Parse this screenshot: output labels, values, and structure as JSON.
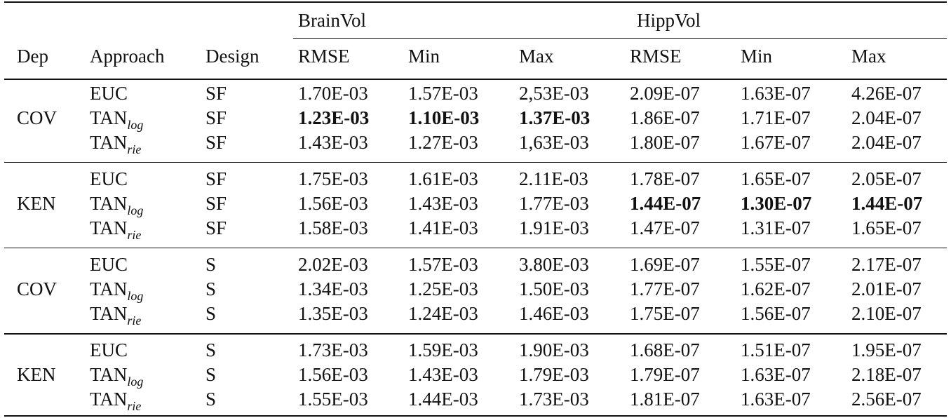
{
  "header": {
    "group_brainvol": "BrainVol",
    "group_hippvol": "HippVol",
    "columns": [
      "Dep",
      "Approach",
      "Design",
      "RMSE",
      "Min",
      "Max",
      "RMSE",
      "Min",
      "Max"
    ]
  },
  "blocks": [
    {
      "dep": "COV",
      "rows": [
        {
          "approach": "EUC",
          "sub": "",
          "design": "SF",
          "values": [
            "1.70E-03",
            "1.57E-03",
            "2,53E-03",
            "2.09E-07",
            "1.63E-07",
            "4.26E-07"
          ],
          "bold": [
            false,
            false,
            false,
            false,
            false,
            false
          ]
        },
        {
          "approach": "TAN",
          "sub": "log",
          "design": "SF",
          "values": [
            "1.23E-03",
            "1.10E-03",
            "1.37E-03",
            "1.86E-07",
            "1.71E-07",
            "2.04E-07"
          ],
          "bold": [
            true,
            true,
            true,
            false,
            false,
            false
          ]
        },
        {
          "approach": "TAN",
          "sub": "rie",
          "design": "SF",
          "values": [
            "1.43E-03",
            "1.27E-03",
            "1,63E-03",
            "1.80E-07",
            "1.67E-07",
            "2.04E-07"
          ],
          "bold": [
            false,
            false,
            false,
            false,
            false,
            false
          ]
        }
      ]
    },
    {
      "dep": "KEN",
      "rows": [
        {
          "approach": "EUC",
          "sub": "",
          "design": "SF",
          "values": [
            "1.75E-03",
            "1.61E-03",
            "2.11E-03",
            "1.78E-07",
            "1.65E-07",
            "2.05E-07"
          ],
          "bold": [
            false,
            false,
            false,
            false,
            false,
            false
          ]
        },
        {
          "approach": "TAN",
          "sub": "log",
          "design": "SF",
          "values": [
            "1.56E-03",
            "1.43E-03",
            "1.77E-03",
            "1.44E-07",
            "1.30E-07",
            "1.44E-07"
          ],
          "bold": [
            false,
            false,
            false,
            true,
            true,
            true
          ]
        },
        {
          "approach": "TAN",
          "sub": "rie",
          "design": "SF",
          "values": [
            "1.58E-03",
            "1.41E-03",
            "1.91E-03",
            "1.47E-07",
            "1.31E-07",
            "1.65E-07"
          ],
          "bold": [
            false,
            false,
            false,
            false,
            false,
            false
          ]
        }
      ]
    },
    {
      "dep": "COV",
      "rows": [
        {
          "approach": "EUC",
          "sub": "",
          "design": "S",
          "values": [
            "2.02E-03",
            "1.57E-03",
            "3.80E-03",
            "1.69E-07",
            "1.55E-07",
            "2.17E-07"
          ],
          "bold": [
            false,
            false,
            false,
            false,
            false,
            false
          ]
        },
        {
          "approach": "TAN",
          "sub": "log",
          "design": "S",
          "values": [
            "1.34E-03",
            "1.25E-03",
            "1.50E-03",
            "1.77E-07",
            "1.62E-07",
            "2.01E-07"
          ],
          "bold": [
            false,
            false,
            false,
            false,
            false,
            false
          ]
        },
        {
          "approach": "TAN",
          "sub": "rie",
          "design": "S",
          "values": [
            "1.35E-03",
            "1.24E-03",
            "1.46E-03",
            "1.75E-07",
            "1.56E-07",
            "2.10E-07"
          ],
          "bold": [
            false,
            false,
            false,
            false,
            false,
            false
          ]
        }
      ]
    },
    {
      "dep": "KEN",
      "rows": [
        {
          "approach": "EUC",
          "sub": "",
          "design": "S",
          "values": [
            "1.73E-03",
            "1.59E-03",
            "1.90E-03",
            "1.68E-07",
            "1.51E-07",
            "1.95E-07"
          ],
          "bold": [
            false,
            false,
            false,
            false,
            false,
            false
          ]
        },
        {
          "approach": "TAN",
          "sub": "log",
          "design": "S",
          "values": [
            "1.56E-03",
            "1.43E-03",
            "1.79E-03",
            "1.79E-07",
            "1.63E-07",
            "2.18E-07"
          ],
          "bold": [
            false,
            false,
            false,
            false,
            false,
            false
          ]
        },
        {
          "approach": "TAN",
          "sub": "rie",
          "design": "S",
          "values": [
            "1.55E-03",
            "1.44E-03",
            "1.73E-03",
            "1.81E-07",
            "1.63E-07",
            "2.56E-07"
          ],
          "bold": [
            false,
            false,
            false,
            false,
            false,
            false
          ]
        }
      ]
    }
  ]
}
